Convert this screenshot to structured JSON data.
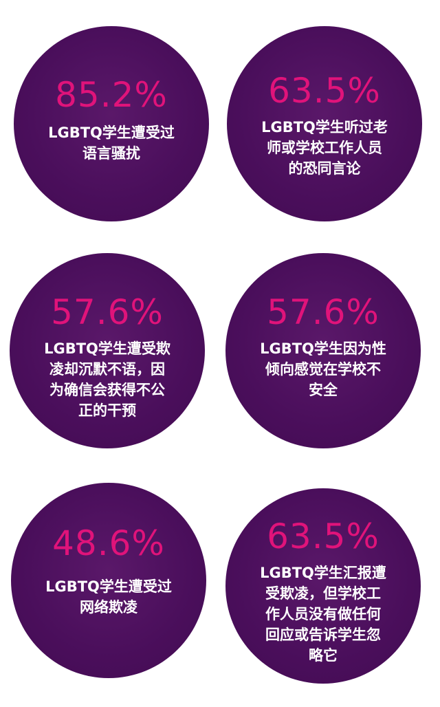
{
  "colors": {
    "circle": "#4b0f5c",
    "value": "#e0137a",
    "text": "#ffffff",
    "background": "#ffffff"
  },
  "stats": [
    {
      "value": "85.2%",
      "text": "LGBTQ学生遭受过\n语言骚扰"
    },
    {
      "value": "63.5%",
      "text": "LGBTQ学生听过老\n师或学校工作人员\n的恐同言论"
    },
    {
      "value": "57.6%",
      "text": "LGBTQ学生遭受欺\n凌却沉默不语，因\n为确信会获得不公\n正的干预"
    },
    {
      "value": "57.6%",
      "text": "LGBTQ学生因为性\n倾向感觉在学校不\n安全"
    },
    {
      "value": "48.6%",
      "text": "LGBTQ学生遭受过\n网络欺凌"
    },
    {
      "value": "63.5%",
      "text": "LGBTQ学生汇报遭\n受欺凌，但学校工\n作人员没有做任何\n回应或告诉学生忽\n略它"
    }
  ]
}
